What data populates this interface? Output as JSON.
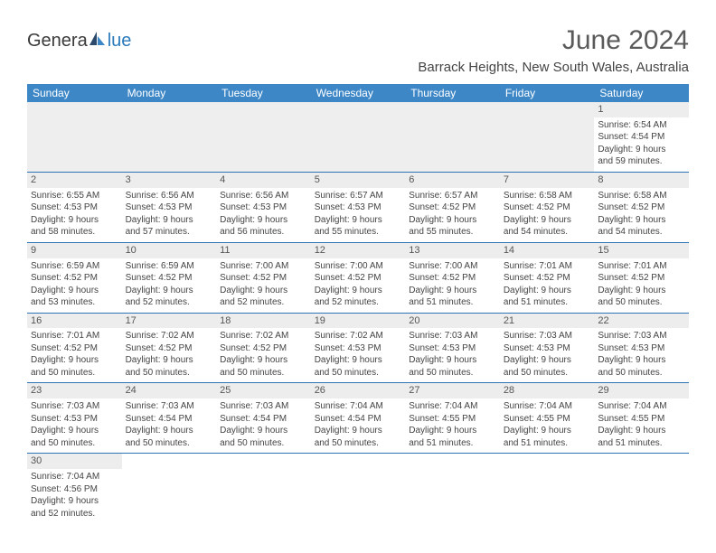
{
  "logo": {
    "text_main": "Genera",
    "text_blue": "lue",
    "icon_color_dark": "#2b4a6b",
    "icon_color_mid": "#3d87c7"
  },
  "header": {
    "month": "June 2024",
    "location": "Barrack Heights, New South Wales, Australia"
  },
  "columns": [
    "Sunday",
    "Monday",
    "Tuesday",
    "Wednesday",
    "Thursday",
    "Friday",
    "Saturday"
  ],
  "colors": {
    "header_bg": "#3d87c7",
    "header_text": "#ffffff",
    "border": "#2c74b3",
    "daynum_bg": "#ededed",
    "blank_bg": "#eeeeee",
    "body_text": "#444444",
    "title_text": "#5a5a5a"
  },
  "weeks": [
    [
      null,
      null,
      null,
      null,
      null,
      null,
      {
        "n": "1",
        "sunrise": "Sunrise: 6:54 AM",
        "sunset": "Sunset: 4:54 PM",
        "day1": "Daylight: 9 hours",
        "day2": "and 59 minutes."
      }
    ],
    [
      {
        "n": "2",
        "sunrise": "Sunrise: 6:55 AM",
        "sunset": "Sunset: 4:53 PM",
        "day1": "Daylight: 9 hours",
        "day2": "and 58 minutes."
      },
      {
        "n": "3",
        "sunrise": "Sunrise: 6:56 AM",
        "sunset": "Sunset: 4:53 PM",
        "day1": "Daylight: 9 hours",
        "day2": "and 57 minutes."
      },
      {
        "n": "4",
        "sunrise": "Sunrise: 6:56 AM",
        "sunset": "Sunset: 4:53 PM",
        "day1": "Daylight: 9 hours",
        "day2": "and 56 minutes."
      },
      {
        "n": "5",
        "sunrise": "Sunrise: 6:57 AM",
        "sunset": "Sunset: 4:53 PM",
        "day1": "Daylight: 9 hours",
        "day2": "and 55 minutes."
      },
      {
        "n": "6",
        "sunrise": "Sunrise: 6:57 AM",
        "sunset": "Sunset: 4:52 PM",
        "day1": "Daylight: 9 hours",
        "day2": "and 55 minutes."
      },
      {
        "n": "7",
        "sunrise": "Sunrise: 6:58 AM",
        "sunset": "Sunset: 4:52 PM",
        "day1": "Daylight: 9 hours",
        "day2": "and 54 minutes."
      },
      {
        "n": "8",
        "sunrise": "Sunrise: 6:58 AM",
        "sunset": "Sunset: 4:52 PM",
        "day1": "Daylight: 9 hours",
        "day2": "and 54 minutes."
      }
    ],
    [
      {
        "n": "9",
        "sunrise": "Sunrise: 6:59 AM",
        "sunset": "Sunset: 4:52 PM",
        "day1": "Daylight: 9 hours",
        "day2": "and 53 minutes."
      },
      {
        "n": "10",
        "sunrise": "Sunrise: 6:59 AM",
        "sunset": "Sunset: 4:52 PM",
        "day1": "Daylight: 9 hours",
        "day2": "and 52 minutes."
      },
      {
        "n": "11",
        "sunrise": "Sunrise: 7:00 AM",
        "sunset": "Sunset: 4:52 PM",
        "day1": "Daylight: 9 hours",
        "day2": "and 52 minutes."
      },
      {
        "n": "12",
        "sunrise": "Sunrise: 7:00 AM",
        "sunset": "Sunset: 4:52 PM",
        "day1": "Daylight: 9 hours",
        "day2": "and 52 minutes."
      },
      {
        "n": "13",
        "sunrise": "Sunrise: 7:00 AM",
        "sunset": "Sunset: 4:52 PM",
        "day1": "Daylight: 9 hours",
        "day2": "and 51 minutes."
      },
      {
        "n": "14",
        "sunrise": "Sunrise: 7:01 AM",
        "sunset": "Sunset: 4:52 PM",
        "day1": "Daylight: 9 hours",
        "day2": "and 51 minutes."
      },
      {
        "n": "15",
        "sunrise": "Sunrise: 7:01 AM",
        "sunset": "Sunset: 4:52 PM",
        "day1": "Daylight: 9 hours",
        "day2": "and 50 minutes."
      }
    ],
    [
      {
        "n": "16",
        "sunrise": "Sunrise: 7:01 AM",
        "sunset": "Sunset: 4:52 PM",
        "day1": "Daylight: 9 hours",
        "day2": "and 50 minutes."
      },
      {
        "n": "17",
        "sunrise": "Sunrise: 7:02 AM",
        "sunset": "Sunset: 4:52 PM",
        "day1": "Daylight: 9 hours",
        "day2": "and 50 minutes."
      },
      {
        "n": "18",
        "sunrise": "Sunrise: 7:02 AM",
        "sunset": "Sunset: 4:52 PM",
        "day1": "Daylight: 9 hours",
        "day2": "and 50 minutes."
      },
      {
        "n": "19",
        "sunrise": "Sunrise: 7:02 AM",
        "sunset": "Sunset: 4:53 PM",
        "day1": "Daylight: 9 hours",
        "day2": "and 50 minutes."
      },
      {
        "n": "20",
        "sunrise": "Sunrise: 7:03 AM",
        "sunset": "Sunset: 4:53 PM",
        "day1": "Daylight: 9 hours",
        "day2": "and 50 minutes."
      },
      {
        "n": "21",
        "sunrise": "Sunrise: 7:03 AM",
        "sunset": "Sunset: 4:53 PM",
        "day1": "Daylight: 9 hours",
        "day2": "and 50 minutes."
      },
      {
        "n": "22",
        "sunrise": "Sunrise: 7:03 AM",
        "sunset": "Sunset: 4:53 PM",
        "day1": "Daylight: 9 hours",
        "day2": "and 50 minutes."
      }
    ],
    [
      {
        "n": "23",
        "sunrise": "Sunrise: 7:03 AM",
        "sunset": "Sunset: 4:53 PM",
        "day1": "Daylight: 9 hours",
        "day2": "and 50 minutes."
      },
      {
        "n": "24",
        "sunrise": "Sunrise: 7:03 AM",
        "sunset": "Sunset: 4:54 PM",
        "day1": "Daylight: 9 hours",
        "day2": "and 50 minutes."
      },
      {
        "n": "25",
        "sunrise": "Sunrise: 7:03 AM",
        "sunset": "Sunset: 4:54 PM",
        "day1": "Daylight: 9 hours",
        "day2": "and 50 minutes."
      },
      {
        "n": "26",
        "sunrise": "Sunrise: 7:04 AM",
        "sunset": "Sunset: 4:54 PM",
        "day1": "Daylight: 9 hours",
        "day2": "and 50 minutes."
      },
      {
        "n": "27",
        "sunrise": "Sunrise: 7:04 AM",
        "sunset": "Sunset: 4:55 PM",
        "day1": "Daylight: 9 hours",
        "day2": "and 51 minutes."
      },
      {
        "n": "28",
        "sunrise": "Sunrise: 7:04 AM",
        "sunset": "Sunset: 4:55 PM",
        "day1": "Daylight: 9 hours",
        "day2": "and 51 minutes."
      },
      {
        "n": "29",
        "sunrise": "Sunrise: 7:04 AM",
        "sunset": "Sunset: 4:55 PM",
        "day1": "Daylight: 9 hours",
        "day2": "and 51 minutes."
      }
    ],
    [
      {
        "n": "30",
        "sunrise": "Sunrise: 7:04 AM",
        "sunset": "Sunset: 4:56 PM",
        "day1": "Daylight: 9 hours",
        "day2": "and 52 minutes."
      },
      null,
      null,
      null,
      null,
      null,
      null
    ]
  ]
}
